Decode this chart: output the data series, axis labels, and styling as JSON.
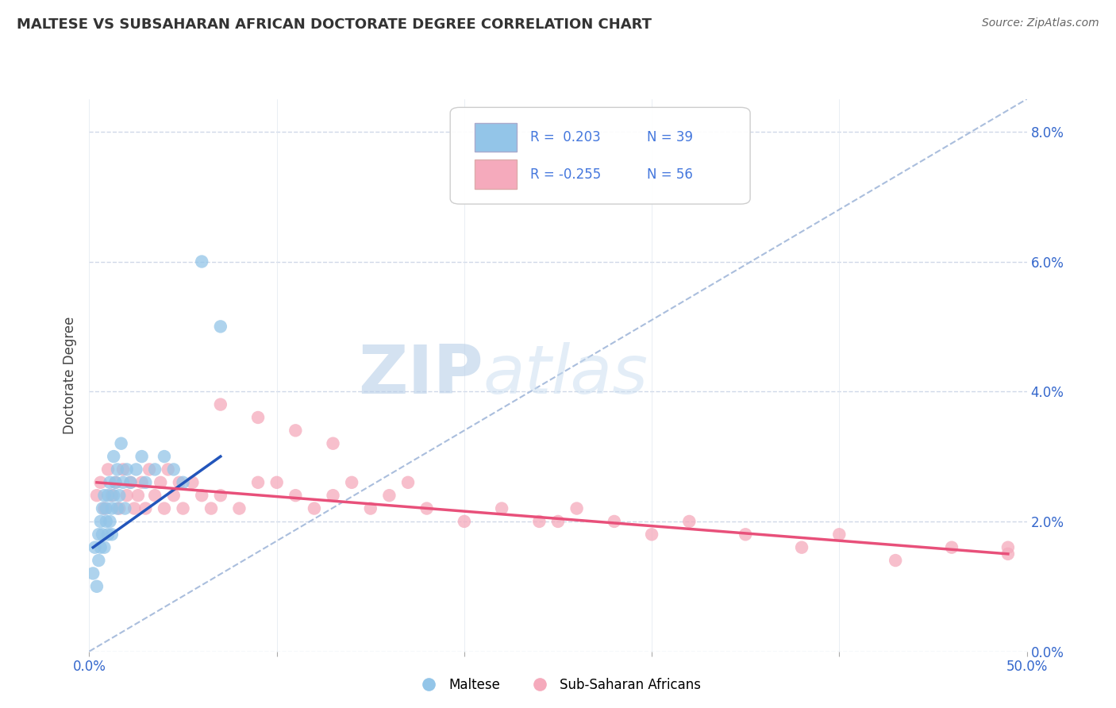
{
  "title": "MALTESE VS SUBSAHARAN AFRICAN DOCTORATE DEGREE CORRELATION CHART",
  "source": "Source: ZipAtlas.com",
  "ylabel": "Doctorate Degree",
  "xlim": [
    0.0,
    0.5
  ],
  "ylim": [
    0.0,
    0.085
  ],
  "xticks": [
    0.0,
    0.1,
    0.2,
    0.3,
    0.4,
    0.5
  ],
  "xticklabels": [
    "0.0%",
    "",
    "",
    "",
    "",
    "50.0%"
  ],
  "yticks": [
    0.0,
    0.02,
    0.04,
    0.06,
    0.08
  ],
  "yticklabels_right": [
    "0.0%",
    "2.0%",
    "4.0%",
    "6.0%",
    "8.0%"
  ],
  "background_color": "#ffffff",
  "grid_color": "#d0d8e8",
  "legend_r1": "R =  0.203",
  "legend_n1": "N = 39",
  "legend_r2": "R = -0.255",
  "legend_n2": "N = 56",
  "blue_color": "#93C5E8",
  "pink_color": "#F5AABC",
  "blue_line_color": "#2255BB",
  "pink_line_color": "#E8507A",
  "diag_line_color": "#AABEDD",
  "legend_text_color": "#4477DD",
  "maltese_x": [
    0.002,
    0.003,
    0.004,
    0.005,
    0.005,
    0.006,
    0.006,
    0.007,
    0.007,
    0.008,
    0.008,
    0.009,
    0.009,
    0.01,
    0.01,
    0.011,
    0.011,
    0.012,
    0.012,
    0.013,
    0.013,
    0.014,
    0.015,
    0.015,
    0.016,
    0.017,
    0.018,
    0.019,
    0.02,
    0.022,
    0.025,
    0.028,
    0.03,
    0.035,
    0.04,
    0.045,
    0.05,
    0.06,
    0.07
  ],
  "maltese_y": [
    0.012,
    0.016,
    0.01,
    0.018,
    0.014,
    0.02,
    0.016,
    0.022,
    0.018,
    0.024,
    0.016,
    0.02,
    0.022,
    0.018,
    0.024,
    0.02,
    0.026,
    0.022,
    0.018,
    0.024,
    0.03,
    0.026,
    0.022,
    0.028,
    0.024,
    0.032,
    0.026,
    0.022,
    0.028,
    0.026,
    0.028,
    0.03,
    0.026,
    0.028,
    0.03,
    0.028,
    0.026,
    0.06,
    0.05
  ],
  "subsaharan_x": [
    0.004,
    0.006,
    0.008,
    0.01,
    0.012,
    0.014,
    0.016,
    0.018,
    0.02,
    0.022,
    0.024,
    0.026,
    0.028,
    0.03,
    0.032,
    0.035,
    0.038,
    0.04,
    0.042,
    0.045,
    0.048,
    0.05,
    0.055,
    0.06,
    0.065,
    0.07,
    0.08,
    0.09,
    0.1,
    0.11,
    0.12,
    0.13,
    0.14,
    0.15,
    0.16,
    0.17,
    0.18,
    0.2,
    0.22,
    0.24,
    0.26,
    0.28,
    0.3,
    0.32,
    0.35,
    0.38,
    0.4,
    0.43,
    0.46,
    0.49,
    0.07,
    0.09,
    0.11,
    0.13,
    0.25,
    0.49
  ],
  "subsaharan_y": [
    0.024,
    0.026,
    0.022,
    0.028,
    0.024,
    0.026,
    0.022,
    0.028,
    0.024,
    0.026,
    0.022,
    0.024,
    0.026,
    0.022,
    0.028,
    0.024,
    0.026,
    0.022,
    0.028,
    0.024,
    0.026,
    0.022,
    0.026,
    0.024,
    0.022,
    0.024,
    0.022,
    0.026,
    0.026,
    0.024,
    0.022,
    0.024,
    0.026,
    0.022,
    0.024,
    0.026,
    0.022,
    0.02,
    0.022,
    0.02,
    0.022,
    0.02,
    0.018,
    0.02,
    0.018,
    0.016,
    0.018,
    0.014,
    0.016,
    0.016,
    0.038,
    0.036,
    0.034,
    0.032,
    0.02,
    0.015
  ],
  "blue_trendline_x": [
    0.002,
    0.07
  ],
  "blue_trendline_y": [
    0.016,
    0.03
  ],
  "pink_trendline_x": [
    0.004,
    0.49
  ],
  "pink_trendline_y": [
    0.026,
    0.015
  ]
}
